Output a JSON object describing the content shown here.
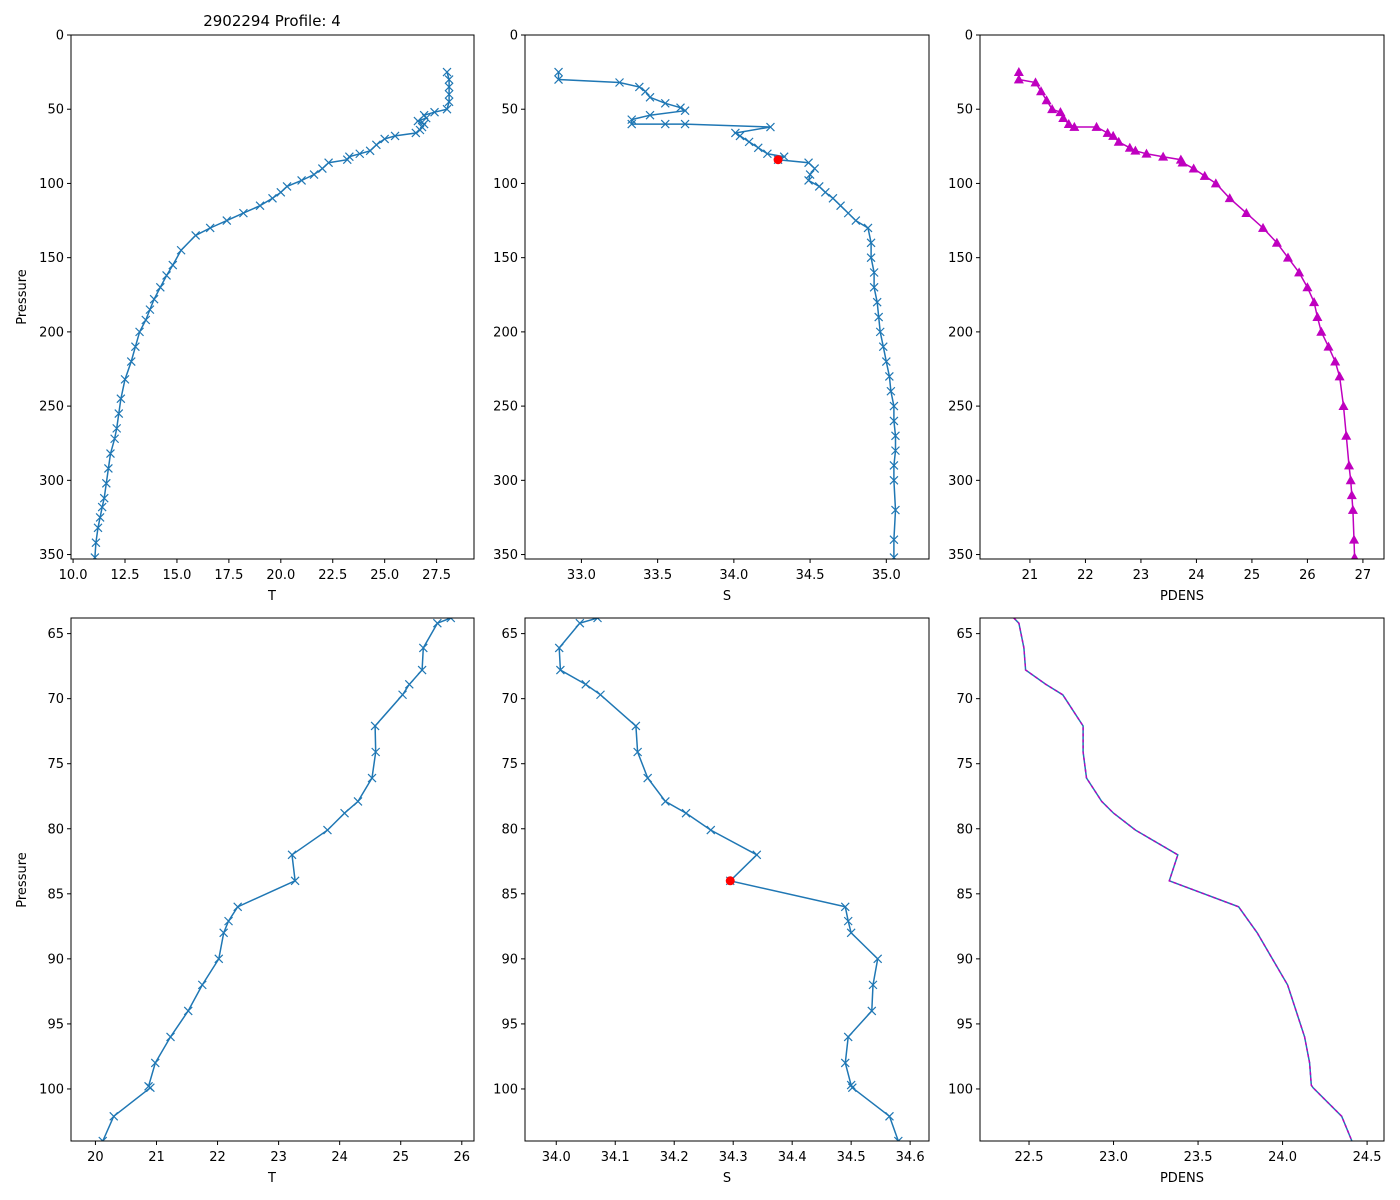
{
  "chart_data": [
    {
      "id": "top-t",
      "type": "line",
      "title": "2902294 Profile: 4",
      "xlabel": "T",
      "ylabel": "Pressure",
      "xlim": [
        9.9,
        29.3
      ],
      "ylim": [
        353,
        0
      ],
      "xticks": [
        10.0,
        12.5,
        15.0,
        17.5,
        20.0,
        22.5,
        25.0,
        27.5
      ],
      "xtick_labels": [
        "10.0",
        "12.5",
        "15.0",
        "17.5",
        "20.0",
        "22.5",
        "25.0",
        "27.5"
      ],
      "yticks": [
        0,
        50,
        100,
        150,
        200,
        250,
        300,
        350
      ],
      "ytick_labels": [
        "0",
        "50",
        "100",
        "150",
        "200",
        "250",
        "300",
        "350"
      ],
      "series": [
        {
          "name": "T",
          "color": "#1f77b4",
          "marker": "x",
          "x": [
            28.0,
            28.1,
            28.1,
            28.1,
            28.1,
            28.0,
            27.4,
            26.9,
            27.0,
            26.6,
            26.9,
            26.8,
            26.7,
            26.5,
            25.5,
            25.0,
            24.6,
            24.3,
            23.8,
            23.3,
            23.2,
            22.3,
            22.0,
            21.6,
            21.0,
            20.3,
            20.0,
            19.6,
            19.0,
            18.2,
            17.4,
            16.6,
            15.9,
            15.2,
            14.8,
            14.5,
            14.2,
            13.9,
            13.7,
            13.5,
            13.2,
            13.0,
            12.8,
            12.5,
            12.3,
            12.2,
            12.1,
            12.0,
            11.8,
            11.7,
            11.6,
            11.5,
            11.4,
            11.3,
            11.2,
            11.1,
            11.05
          ],
          "y": [
            25,
            30,
            35,
            40,
            45,
            50,
            52,
            54,
            56,
            58,
            60,
            62,
            64,
            66,
            68,
            70,
            74,
            78,
            80,
            82,
            84,
            86,
            90,
            94,
            98,
            102,
            106,
            110,
            115,
            120,
            125,
            130,
            135,
            145,
            155,
            162,
            170,
            178,
            185,
            192,
            200,
            210,
            220,
            232,
            245,
            255,
            265,
            272,
            282,
            292,
            302,
            312,
            318,
            325,
            332,
            342,
            352
          ]
        }
      ]
    },
    {
      "id": "top-s",
      "type": "line",
      "title": "",
      "xlabel": "S",
      "ylabel": "",
      "xlim": [
        32.63,
        35.28
      ],
      "ylim": [
        353,
        0
      ],
      "xticks": [
        33.0,
        33.5,
        34.0,
        34.5,
        35.0
      ],
      "xtick_labels": [
        "33.0",
        "33.5",
        "34.0",
        "34.5",
        "35.0"
      ],
      "yticks": [
        0,
        50,
        100,
        150,
        200,
        250,
        300,
        350
      ],
      "ytick_labels": [
        "0",
        "50",
        "100",
        "150",
        "200",
        "250",
        "300",
        "350"
      ],
      "series": [
        {
          "name": "S",
          "color": "#1f77b4",
          "marker": "x",
          "x": [
            32.85,
            32.85,
            33.25,
            33.38,
            33.42,
            33.45,
            33.55,
            33.65,
            33.68,
            33.45,
            33.33,
            33.33,
            33.55,
            33.68,
            34.24,
            34.01,
            34.04,
            34.1,
            34.16,
            34.22,
            34.33,
            34.29,
            34.49,
            34.53,
            34.5,
            34.49,
            34.56,
            34.6,
            34.65,
            34.7,
            34.75,
            34.8,
            34.88,
            34.9,
            34.9,
            34.92,
            34.92,
            34.94,
            34.95,
            34.96,
            34.98,
            35.0,
            35.02,
            35.03,
            35.05,
            35.05,
            35.06,
            35.06,
            35.05,
            35.05,
            35.06,
            35.05,
            35.05
          ],
          "y": [
            25,
            30,
            32,
            35,
            38,
            42,
            46,
            49,
            51,
            54,
            57,
            60,
            60,
            60,
            62,
            66,
            68,
            72,
            76,
            80,
            82,
            84,
            86,
            90,
            94,
            98,
            102,
            106,
            110,
            115,
            120,
            125,
            130,
            140,
            150,
            160,
            170,
            180,
            190,
            200,
            210,
            220,
            230,
            240,
            250,
            260,
            270,
            280,
            290,
            300,
            320,
            340,
            352
          ]
        }
      ],
      "highlight": {
        "x": 34.29,
        "y": 84,
        "color": "#ff0000"
      }
    },
    {
      "id": "top-pdens",
      "type": "line",
      "title": "",
      "xlabel": "PDENS",
      "ylabel": "",
      "xlim": [
        20.1,
        27.38
      ],
      "ylim": [
        353,
        0
      ],
      "xticks": [
        21,
        22,
        23,
        24,
        25,
        26,
        27
      ],
      "xtick_labels": [
        "21",
        "22",
        "23",
        "24",
        "25",
        "26",
        "27"
      ],
      "yticks": [
        0,
        50,
        100,
        150,
        200,
        250,
        300,
        350
      ],
      "ytick_labels": [
        "0",
        "50",
        "100",
        "150",
        "200",
        "250",
        "300",
        "350"
      ],
      "series": [
        {
          "name": "PDENS",
          "color": "#bf00bf",
          "marker": "triangle",
          "x": [
            20.8,
            20.8,
            21.1,
            21.2,
            21.3,
            21.4,
            21.55,
            21.6,
            21.7,
            21.8,
            22.2,
            22.4,
            22.5,
            22.6,
            22.8,
            22.9,
            23.1,
            23.4,
            23.72,
            23.75,
            23.95,
            24.15,
            24.35,
            24.6,
            24.9,
            25.2,
            25.45,
            25.65,
            25.85,
            26.0,
            26.12,
            26.18,
            26.25,
            26.38,
            26.5,
            26.58,
            26.65,
            26.7,
            26.75,
            26.78,
            26.8,
            26.82,
            26.84,
            26.85
          ],
          "y": [
            25,
            30,
            32,
            38,
            44,
            50,
            52,
            56,
            60,
            62,
            62,
            66,
            68,
            72,
            76,
            78,
            80,
            82,
            84,
            86,
            90,
            95,
            100,
            110,
            120,
            130,
            140,
            150,
            160,
            170,
            180,
            190,
            200,
            210,
            220,
            230,
            250,
            270,
            290,
            300,
            310,
            320,
            340,
            352
          ]
        }
      ]
    },
    {
      "id": "bottom-t",
      "type": "line",
      "title": "",
      "xlabel": "T",
      "ylabel": "Pressure",
      "xlim": [
        19.6,
        26.2
      ],
      "ylim": [
        104,
        63.8
      ],
      "xticks": [
        20,
        21,
        22,
        23,
        24,
        25,
        26
      ],
      "xtick_labels": [
        "20",
        "21",
        "22",
        "23",
        "24",
        "25",
        "26"
      ],
      "yticks": [
        65,
        70,
        75,
        80,
        85,
        90,
        95,
        100
      ],
      "ytick_labels": [
        "65",
        "70",
        "75",
        "80",
        "85",
        "90",
        "95",
        "100"
      ],
      "series": [
        {
          "name": "T",
          "color": "#1f77b4",
          "marker": "x",
          "x": [
            25.82,
            25.6,
            25.37,
            25.35,
            25.14,
            25.03,
            24.58,
            24.59,
            24.53,
            24.3,
            24.08,
            23.8,
            23.22,
            23.27,
            22.33,
            22.18,
            22.1,
            22.02,
            21.75,
            21.52,
            21.23,
            20.98,
            20.87,
            20.9,
            20.3,
            20.12
          ],
          "y": [
            63.8,
            64.2,
            66.1,
            67.8,
            68.9,
            69.7,
            72.1,
            74.1,
            76.1,
            77.9,
            78.8,
            80.1,
            82.0,
            84.0,
            86.0,
            87.1,
            88.0,
            90.0,
            92.0,
            94.0,
            96.0,
            98.0,
            99.8,
            99.9,
            102.1,
            104.0
          ]
        }
      ]
    },
    {
      "id": "bottom-s",
      "type": "line",
      "title": "",
      "xlabel": "S",
      "ylabel": "",
      "xlim": [
        33.947,
        34.632
      ],
      "ylim": [
        104,
        63.8
      ],
      "xticks": [
        34.0,
        34.1,
        34.2,
        34.3,
        34.4,
        34.5,
        34.6
      ],
      "xtick_labels": [
        "34.0",
        "34.1",
        "34.2",
        "34.3",
        "34.4",
        "34.5",
        "34.6"
      ],
      "yticks": [
        65,
        70,
        75,
        80,
        85,
        90,
        95,
        100
      ],
      "ytick_labels": [
        "65",
        "70",
        "75",
        "80",
        "85",
        "90",
        "95",
        "100"
      ],
      "series": [
        {
          "name": "S",
          "color": "#1f77b4",
          "marker": "x",
          "x": [
            34.07,
            34.04,
            34.005,
            34.007,
            34.05,
            34.075,
            34.135,
            34.138,
            34.155,
            34.185,
            34.22,
            34.262,
            34.34,
            34.295,
            34.49,
            34.495,
            34.5,
            34.545,
            34.537,
            34.535,
            34.495,
            34.49,
            34.5,
            34.502,
            34.565,
            34.58
          ],
          "y": [
            63.8,
            64.2,
            66.1,
            67.8,
            68.9,
            69.7,
            72.1,
            74.1,
            76.1,
            77.9,
            78.8,
            80.1,
            82.0,
            84.0,
            86.0,
            87.1,
            88.0,
            90.0,
            92.0,
            94.0,
            96.0,
            98.0,
            99.7,
            99.9,
            102.1,
            104.0
          ]
        }
      ],
      "highlight": {
        "x": 34.295,
        "y": 84,
        "color": "#ff0000"
      }
    },
    {
      "id": "bottom-pdens",
      "type": "line",
      "title": "",
      "xlabel": "PDENS",
      "ylabel": "",
      "xlim": [
        22.21,
        24.6
      ],
      "ylim": [
        104,
        63.8
      ],
      "xticks": [
        22.5,
        23.0,
        23.5,
        24.0,
        24.5
      ],
      "xtick_labels": [
        "22.5",
        "23.0",
        "23.5",
        "24.0",
        "24.5"
      ],
      "yticks": [
        65,
        70,
        75,
        80,
        85,
        90,
        95,
        100
      ],
      "ytick_labels": [
        "65",
        "70",
        "75",
        "80",
        "85",
        "90",
        "95",
        "100"
      ],
      "series": [
        {
          "name": "PDENS",
          "color": "#1f77b4",
          "marker": "none",
          "x": [
            22.41,
            22.44,
            22.47,
            22.48,
            22.6,
            22.7,
            22.82,
            22.82,
            22.84,
            22.93,
            23.0,
            23.13,
            23.38,
            23.33,
            23.74,
            23.8,
            23.85,
            23.94,
            24.03,
            24.08,
            24.13,
            24.16,
            24.17,
            24.18,
            24.35,
            24.41
          ],
          "y": [
            63.8,
            64.2,
            66.1,
            67.8,
            68.9,
            69.7,
            72.1,
            74.1,
            76.1,
            77.9,
            78.8,
            80.1,
            82.0,
            84.0,
            86.0,
            87.1,
            88.0,
            90.0,
            92.0,
            94.0,
            96.0,
            98.0,
            99.7,
            99.9,
            102.1,
            104.0
          ],
          "overlay_color": "#bf00bf"
        }
      ]
    }
  ]
}
